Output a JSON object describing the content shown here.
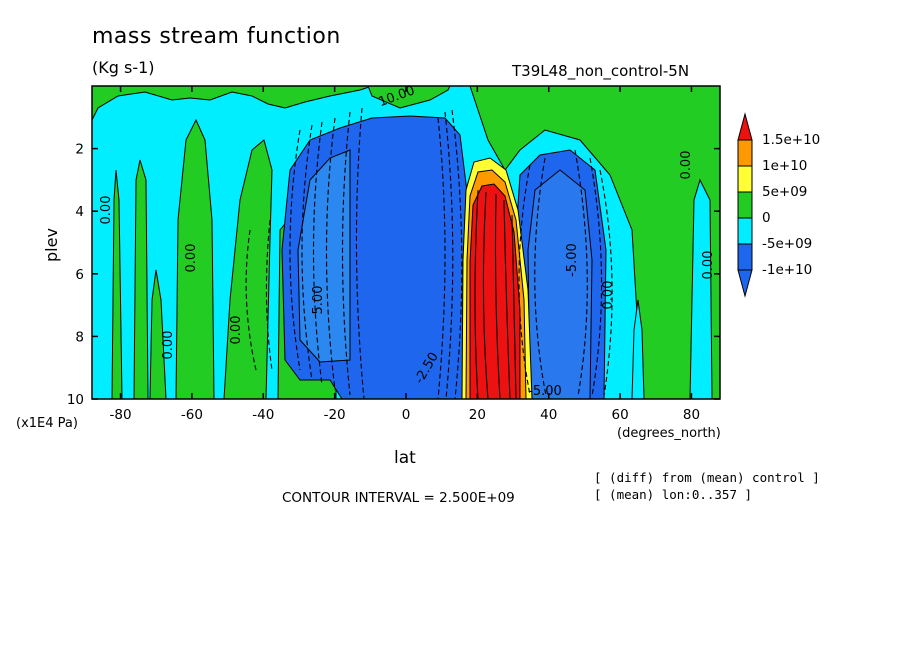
{
  "chart_data": {
    "type": "heatmap",
    "title": "mass stream function",
    "units": "(Kg s-1)",
    "experiment": "T39L48_non_control-5N",
    "xlabel": "lat",
    "xunits": "(degrees_north)",
    "ylabel": "plev",
    "yunits": "(x1E4 Pa)",
    "xlim": [
      -88,
      88
    ],
    "ylim": [
      10,
      0
    ],
    "xticks": [
      -80,
      -60,
      -40,
      -20,
      0,
      20,
      40,
      60,
      80
    ],
    "yticks": [
      2,
      4,
      6,
      8,
      10
    ],
    "contour_interval": "CONTOUR INTERVAL = 2.500E+09",
    "notes": [
      "[ (diff) from (mean) control ]",
      "[ (mean) lon:0..357 ]"
    ],
    "legend": {
      "placement": "right",
      "levels": [
        "1.5e+10",
        "1e+10",
        "5e+09",
        "0",
        "-5e+09",
        "-1e+10"
      ],
      "colors": [
        "#ee1111",
        "#ff9900",
        "#ffff33",
        "#22cc22",
        "#00eeff",
        "#1e66ee"
      ],
      "end_colors": {
        "top": "#ee1111",
        "bottom": "#1e66ee"
      }
    },
    "features": [
      {
        "name": "negative cell",
        "lat_center": 2,
        "plev_range": [
          1,
          10
        ],
        "min_level": "-1e+10"
      },
      {
        "name": "positive cell",
        "lat_center": 24,
        "plev_range": [
          2.5,
          10
        ],
        "max_level": "1.5e+10"
      },
      {
        "name": "negative cell",
        "lat_center": 41,
        "plev_range": [
          2,
          10
        ],
        "min_level": "-1e+10"
      },
      {
        "name": "positive cell",
        "lat_center": -29,
        "plev_range": [
          3,
          10
        ],
        "max_level": "5e+09"
      }
    ],
    "contour_labels": [
      "10.00",
      "0.00",
      "-2.50",
      "5.00",
      "-5.00"
    ]
  }
}
